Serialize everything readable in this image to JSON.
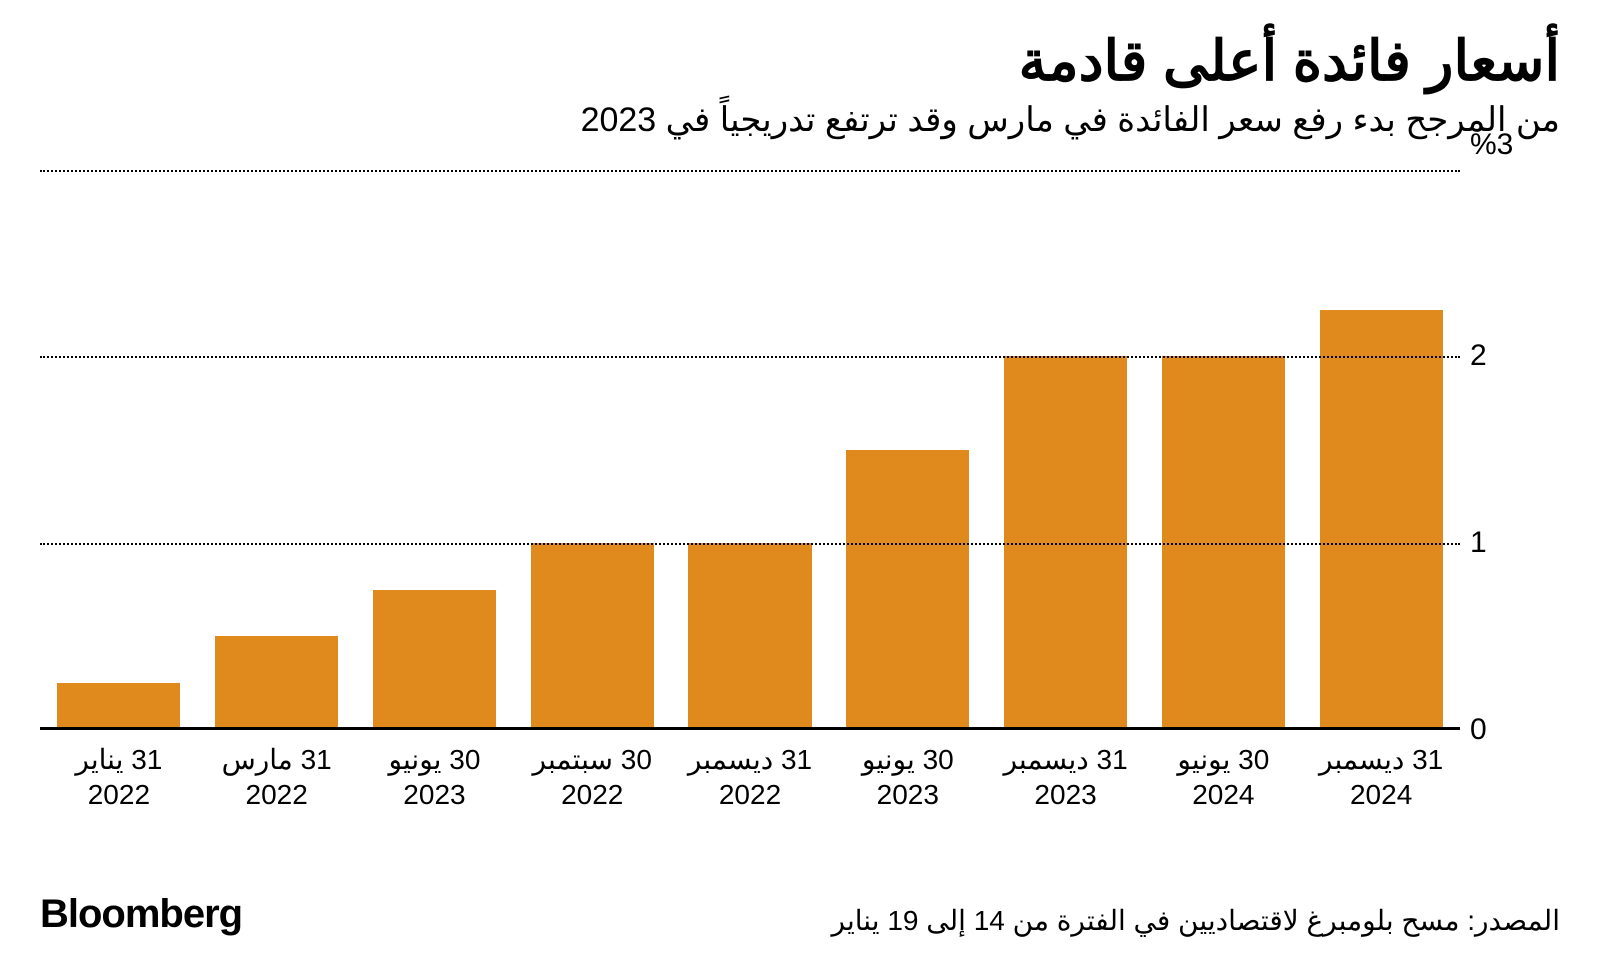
{
  "title": "أسعار فائدة أعلى قادمة",
  "subtitle": "من المرجح بدء رفع سعر الفائدة في مارس وقد ترتفع تدريجياً في 2023",
  "source": "المصدر: مسح بلومبرغ لاقتصاديين في الفترة من 14 إلى 19 يناير",
  "brand": "Bloomberg",
  "chart": {
    "type": "bar",
    "bar_color": "#e08a1e",
    "background_color": "#ffffff",
    "grid_color": "#000000",
    "grid_style": "dotted",
    "baseline_color": "#000000",
    "bar_width_ratio": 0.78,
    "ymin": 0,
    "ymax": 3,
    "y_top_label": "%3",
    "yticks": [
      {
        "value": 0,
        "label": "0"
      },
      {
        "value": 1,
        "label": "1"
      },
      {
        "value": 2,
        "label": "2"
      }
    ],
    "data": [
      {
        "label_line1": "31 يناير",
        "label_line2": "2022",
        "value": 0.25
      },
      {
        "label_line1": "31 مارس",
        "label_line2": "2022",
        "value": 0.5
      },
      {
        "label_line1": "30 يونيو",
        "label_line2": "2023",
        "value": 0.75
      },
      {
        "label_line1": "30 سبتمبر",
        "label_line2": "2022",
        "value": 1.0
      },
      {
        "label_line1": "31 ديسمبر",
        "label_line2": "2022",
        "value": 1.0
      },
      {
        "label_line1": "30 يونيو",
        "label_line2": "2023",
        "value": 1.5
      },
      {
        "label_line1": "31 ديسمبر",
        "label_line2": "2023",
        "value": 2.0
      },
      {
        "label_line1": "30 يونيو",
        "label_line2": "2024",
        "value": 2.0
      },
      {
        "label_line1": "31 ديسمبر",
        "label_line2": "2024",
        "value": 2.25
      }
    ],
    "title_fontsize": 56,
    "subtitle_fontsize": 34,
    "axis_label_fontsize": 30,
    "xlabel_fontsize": 28,
    "source_fontsize": 28,
    "brand_fontsize": 40
  }
}
